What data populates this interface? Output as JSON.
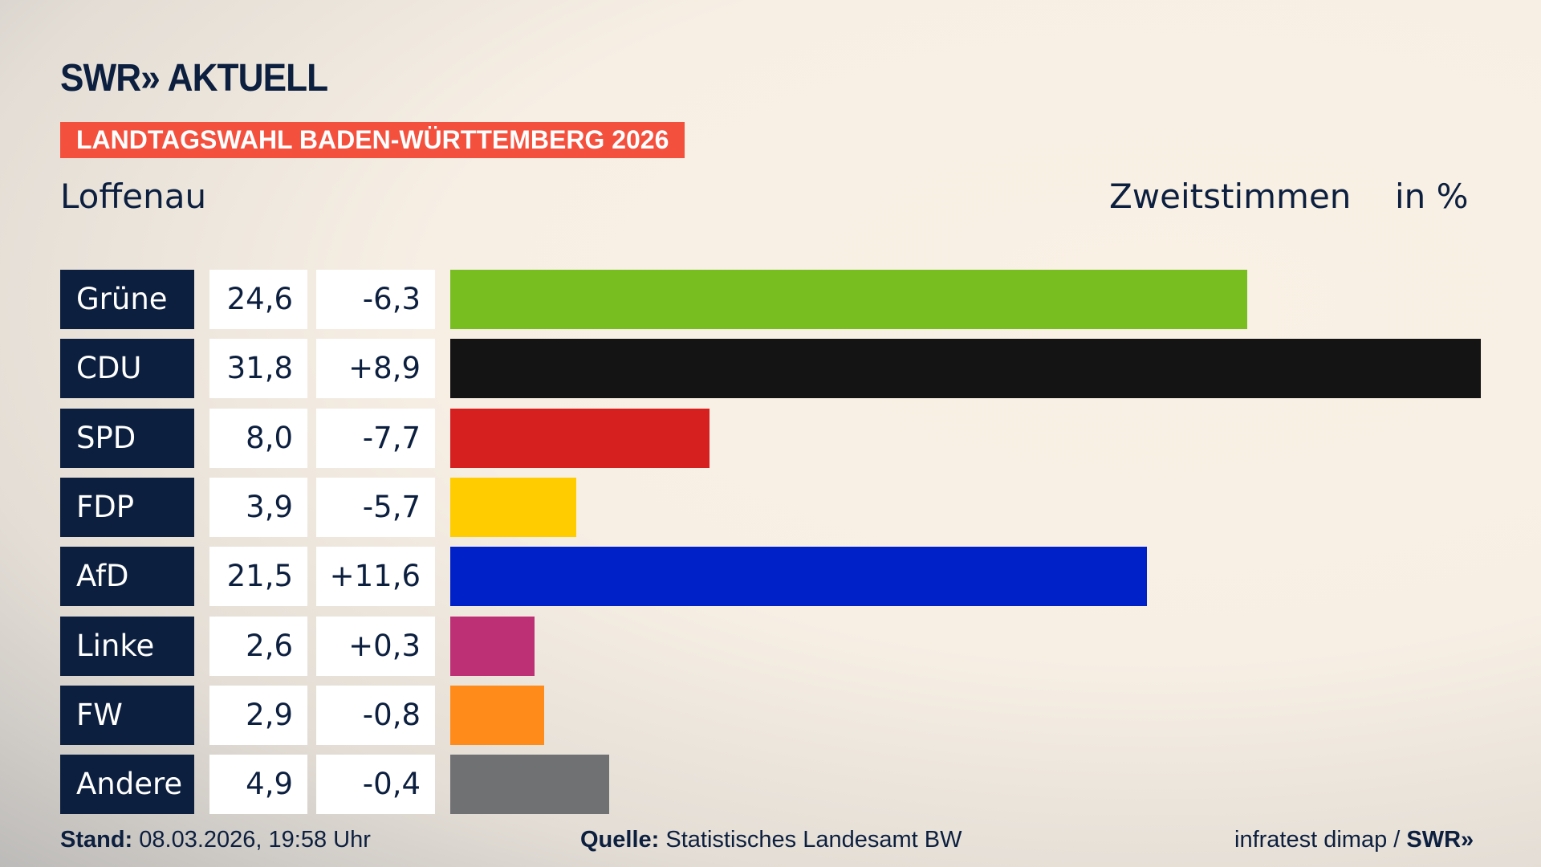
{
  "header": {
    "logo": "SWR» AKTUELL",
    "banner": "LANDTAGSWAHL BADEN-WÜRTTEMBERG 2026",
    "place": "Loffenau",
    "vote_type": "Zweitstimmen",
    "unit": "in %"
  },
  "chart_data": {
    "type": "bar",
    "orientation": "horizontal",
    "categories": [
      "Grüne",
      "CDU",
      "SPD",
      "FDP",
      "AfD",
      "Linke",
      "FW",
      "Andere"
    ],
    "values": [
      24.6,
      31.8,
      8.0,
      3.9,
      21.5,
      2.6,
      2.9,
      4.9
    ],
    "value_labels": [
      "24,6",
      "31,8",
      "8,0",
      "3,9",
      "21,5",
      "2,6",
      "2,9",
      "4,9"
    ],
    "change_labels": [
      "-6,3",
      "+8,9",
      "-7,7",
      "-5,7",
      "+11,6",
      "+0,3",
      "-0,8",
      "-0,4"
    ],
    "changes": [
      -6.3,
      8.9,
      -7.7,
      -5.7,
      11.6,
      0.3,
      -0.8,
      -0.4
    ],
    "colors": [
      "#78be20",
      "#141414",
      "#d61f1f",
      "#ffcc00",
      "#0020c8",
      "#be3075",
      "#ff8c1a",
      "#707173"
    ]
  },
  "footer": {
    "stand_label": "Stand:",
    "stand_value": "08.03.2026, 19:58 Uhr",
    "source_label": "Quelle:",
    "source_value": "Statistisches Landesamt BW",
    "credit": "infratest dimap / ",
    "credit_logo": "SWR»"
  }
}
